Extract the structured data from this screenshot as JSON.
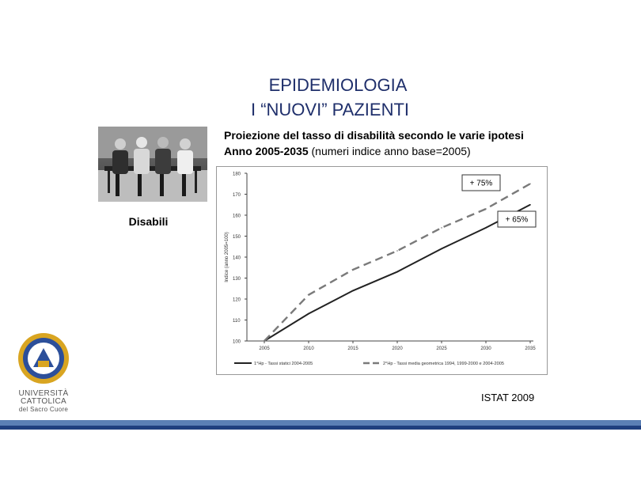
{
  "slide": {
    "title_line1": "EPIDEMIOLOGIA",
    "title_line2": "I “NUOVI” PAZIENTI",
    "subtitle_line1": "Proiezione del tasso di disabilità secondo le varie ipotesi",
    "subtitle_line2_bold": "Anno 2005-2035",
    "subtitle_line2_rest": " (numeri indice anno base=2005)",
    "photo_label": "Disabili",
    "source": "ISTAT 2009",
    "university_line1": "UNIVERSITÀ",
    "university_line2": "CATTOLICA",
    "university_line3": "del Sacro Cuore"
  },
  "colors": {
    "title": "#1f2f6b",
    "band_light": "#5b7fb5",
    "band_dark": "#1f3f7f",
    "series1": "#222222",
    "series2": "#7a7a7a",
    "logo_gold": "#d9a521",
    "logo_blue": "#2c4f9a"
  },
  "chart_data": {
    "type": "line",
    "title": "",
    "xlabel": "",
    "ylabel": "Indice (anno 2005=100)",
    "x": [
      2005,
      2010,
      2015,
      2020,
      2025,
      2030,
      2035
    ],
    "ylim": [
      100,
      180
    ],
    "yticks": [
      100,
      110,
      120,
      130,
      140,
      150,
      160,
      170,
      180
    ],
    "xticks": [
      2005,
      2010,
      2015,
      2020,
      2025,
      2030,
      2035
    ],
    "grid": false,
    "legend_position": "bottom",
    "series": [
      {
        "name": "1°Hp - Tassi statici 2004-2005",
        "style": "solid",
        "values": [
          100,
          113,
          124,
          133,
          144,
          154,
          165
        ]
      },
      {
        "name": "2°Hp - Tassi media geometrica 1994, 1999-2000 e 2004-2005",
        "style": "dashed",
        "values": [
          100,
          122,
          134,
          143,
          154,
          163,
          175
        ]
      }
    ],
    "annotations": [
      {
        "text": "+ 75%",
        "series": 1
      },
      {
        "text": "+ 65%",
        "series": 0
      }
    ]
  }
}
